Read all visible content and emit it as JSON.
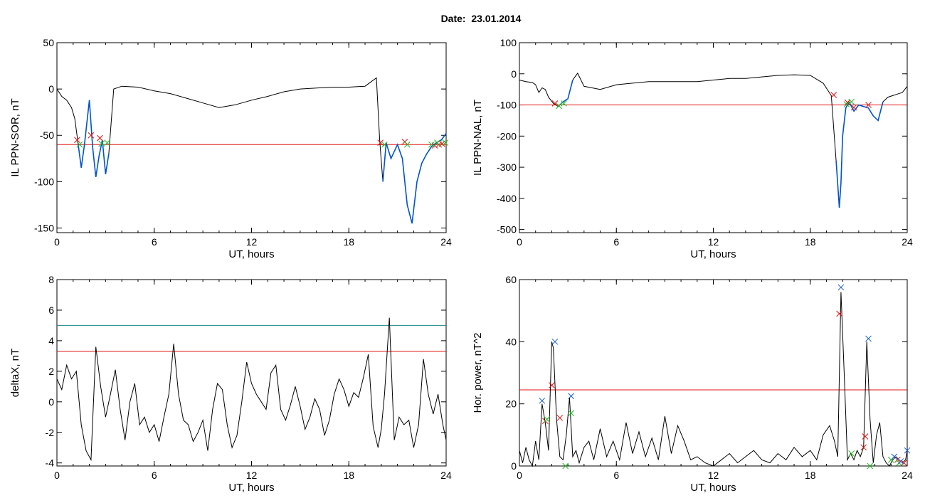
{
  "figure": {
    "title": "Date:  23.01.2014"
  },
  "colors": {
    "series": "#000000",
    "disturbed": "#0055cc",
    "threshold": "#e01010",
    "threshold2": "#14877f",
    "start_marker": "#e01010",
    "end_marker": "#22bb22",
    "peak_marker": "#1a5fd0"
  },
  "chart_data": [
    {
      "type": "line",
      "title": "",
      "xlabel": "UT, hours",
      "ylabel": "IL PPN-SOR, nT",
      "xlim": [
        0,
        24
      ],
      "ylim": [
        -155,
        50
      ],
      "x_ticks": [
        0,
        6,
        12,
        18,
        24
      ],
      "y_ticks": [
        -150,
        -100,
        -50,
        0,
        50
      ],
      "grid": false,
      "series": [
        {
          "role": "main",
          "x": [
            0,
            0.3,
            0.6,
            0.9,
            1.1,
            1.3,
            1.5,
            1.7,
            2.0,
            2.2,
            2.4,
            2.6,
            2.8,
            3.0,
            3.2,
            3.5,
            4,
            5,
            6,
            7,
            8,
            9,
            10,
            11,
            12,
            13,
            14,
            15,
            16,
            17,
            18,
            19,
            19.7,
            19.9,
            20.1,
            20.3,
            20.6,
            21,
            21.3,
            21.6,
            21.9,
            22.2,
            22.5,
            22.8,
            23.1,
            23.4,
            23.7,
            24
          ],
          "y": [
            0,
            -8,
            -12,
            -20,
            -32,
            -58,
            -85,
            -60,
            -12,
            -62,
            -95,
            -72,
            -55,
            -92,
            -70,
            0,
            3,
            2,
            -2,
            -5,
            -10,
            -15,
            -20,
            -17,
            -12,
            -8,
            -3,
            0,
            1,
            2,
            2,
            3,
            12,
            -55,
            -100,
            -58,
            -75,
            -60,
            -75,
            -125,
            -145,
            -100,
            -80,
            -70,
            -62,
            -58,
            -55,
            -48
          ]
        }
      ],
      "disturbed_intervals": [
        [
          1.3,
          3.3
        ],
        [
          20.0,
          24.0
        ]
      ],
      "threshold_lines": [
        {
          "role": "threshold",
          "y": -60
        }
      ],
      "start_markers": {
        "x": [
          1.25,
          2.1,
          2.65,
          19.95,
          21.45,
          23.3,
          23.55,
          23.75
        ],
        "y": [
          -55,
          -50,
          -53,
          -58,
          -57,
          -61,
          -60,
          -59
        ]
      },
      "end_markers": {
        "x": [
          1.4,
          2.75,
          3.1,
          20.2,
          21.6,
          23.1,
          23.45,
          23.95
        ],
        "y": [
          -60,
          -59,
          -58,
          -60,
          -60,
          -60,
          -58,
          -58
        ]
      }
    },
    {
      "type": "line",
      "title": "",
      "xlabel": "UT, hours",
      "ylabel": "IL PPN-NAL, nT",
      "xlim": [
        0,
        24
      ],
      "ylim": [
        -510,
        100
      ],
      "x_ticks": [
        0,
        6,
        12,
        18,
        24
      ],
      "y_ticks": [
        -500,
        -400,
        -300,
        -200,
        -100,
        0,
        100
      ],
      "grid": false,
      "series": [
        {
          "role": "main",
          "x": [
            0,
            0.4,
            0.8,
            1.0,
            1.2,
            1.4,
            1.6,
            1.8,
            2.1,
            2.4,
            2.7,
            3.0,
            3.3,
            3.6,
            4,
            5,
            6,
            7,
            8,
            9,
            10,
            11,
            12,
            13,
            14,
            15,
            16,
            17,
            18,
            18.8,
            19.3,
            19.6,
            19.8,
            19.9,
            20.0,
            20.2,
            20.4,
            20.7,
            21,
            21.3,
            21.6,
            21.9,
            22.2,
            22.5,
            22.8,
            23.1,
            23.4,
            23.7,
            24
          ],
          "y": [
            -20,
            -25,
            -28,
            -35,
            -60,
            -45,
            -50,
            -75,
            -95,
            -105,
            -90,
            -80,
            -20,
            2,
            -40,
            -50,
            -35,
            -30,
            -25,
            -25,
            -25,
            -25,
            -20,
            -15,
            -15,
            -10,
            -5,
            -3,
            -5,
            -30,
            -70,
            -280,
            -430,
            -350,
            -200,
            -110,
            -90,
            -120,
            -100,
            -105,
            -110,
            -135,
            -150,
            -90,
            -75,
            -70,
            -65,
            -60,
            -40
          ]
        }
      ],
      "disturbed_intervals": [
        [
          2.2,
          3.3
        ],
        [
          19.4,
          22.6
        ]
      ],
      "threshold_lines": [
        {
          "role": "threshold",
          "y": -100
        }
      ],
      "start_markers": {
        "x": [
          2.2,
          19.45,
          20.3,
          20.7,
          21.6
        ],
        "y": [
          -95,
          -68,
          -92,
          -108,
          -100
        ]
      },
      "end_markers": {
        "x": [
          2.45,
          2.75,
          20.25,
          20.55
        ],
        "y": [
          -103,
          -95,
          -98,
          -90
        ]
      }
    },
    {
      "type": "line",
      "title": "",
      "xlabel": "UT, hours",
      "ylabel": "deltaX, nT",
      "xlim": [
        0,
        24
      ],
      "ylim": [
        -4.2,
        8
      ],
      "x_ticks": [
        0,
        6,
        12,
        18,
        24
      ],
      "y_ticks": [
        -4,
        -2,
        0,
        2,
        4,
        6,
        8
      ],
      "grid": false,
      "series": [
        {
          "role": "main",
          "x": [
            0,
            0.3,
            0.6,
            0.9,
            1.2,
            1.5,
            1.8,
            2.1,
            2.4,
            2.7,
            3,
            3.3,
            3.6,
            3.9,
            4.2,
            4.5,
            4.8,
            5.1,
            5.4,
            5.7,
            6,
            6.3,
            6.6,
            6.9,
            7.2,
            7.5,
            7.8,
            8.1,
            8.4,
            8.7,
            9,
            9.3,
            9.6,
            9.9,
            10.2,
            10.5,
            10.8,
            11.1,
            11.4,
            11.7,
            12,
            12.3,
            12.6,
            12.9,
            13.2,
            13.5,
            13.8,
            14.1,
            14.4,
            14.7,
            15,
            15.3,
            15.6,
            15.9,
            16.2,
            16.5,
            16.8,
            17.1,
            17.4,
            17.7,
            18,
            18.3,
            18.6,
            18.9,
            19.2,
            19.5,
            19.8,
            20,
            20.2,
            20.5,
            20.8,
            21.1,
            21.4,
            21.7,
            22,
            22.3,
            22.6,
            22.9,
            23.2,
            23.5,
            23.8,
            24
          ],
          "y": [
            1.5,
            0.8,
            2.4,
            1.5,
            2,
            -1.5,
            -3.2,
            -3.8,
            3.6,
            1,
            -1,
            0.5,
            2.1,
            -0.5,
            -2.5,
            0,
            1.2,
            -1.5,
            -1,
            -2,
            -1.5,
            -2.6,
            -1,
            0.5,
            3.8,
            0.5,
            -1.2,
            -1.5,
            -2.6,
            -2,
            -1.2,
            -3.2,
            -0.5,
            1.2,
            0.8,
            -1.5,
            -3,
            -2.2,
            0,
            2.6,
            1.2,
            0.5,
            0,
            -0.5,
            1.9,
            2.4,
            -0.5,
            -1.2,
            -0.2,
            1,
            -0.3,
            -1.8,
            -1,
            0.2,
            -0.5,
            -2.2,
            -1.2,
            0.5,
            1.5,
            0.8,
            -0.3,
            0.6,
            0.3,
            1.6,
            3.1,
            -1.6,
            -3,
            -1.8,
            0.5,
            5.5,
            -2.5,
            -1,
            -1.5,
            -1.2,
            -3,
            -1.5,
            2.8,
            0.5,
            -0.8,
            0.5,
            -1.5,
            -2.5
          ]
        }
      ],
      "threshold_lines": [
        {
          "role": "threshold2",
          "y": 5.0
        },
        {
          "role": "threshold",
          "y": 3.3
        }
      ]
    },
    {
      "type": "line",
      "title": "",
      "xlabel": "UT, hours",
      "ylabel": "Hor. power, nT^2",
      "xlim": [
        0,
        24
      ],
      "ylim": [
        0,
        60
      ],
      "x_ticks": [
        0,
        6,
        12,
        18,
        24
      ],
      "y_ticks": [
        0,
        20,
        40,
        60
      ],
      "grid": false,
      "series": [
        {
          "role": "main",
          "x": [
            0,
            0.2,
            0.4,
            0.6,
            0.8,
            1.0,
            1.2,
            1.4,
            1.6,
            1.8,
            2.0,
            2.1,
            2.3,
            2.5,
            2.7,
            2.9,
            3.1,
            3.3,
            3.5,
            3.7,
            4,
            4.3,
            4.6,
            5,
            5.4,
            5.8,
            6.2,
            6.6,
            7,
            7.4,
            7.8,
            8.2,
            8.6,
            9,
            9.4,
            9.8,
            10.2,
            10.6,
            11,
            11.5,
            12,
            12.5,
            13,
            13.5,
            14,
            14.5,
            15,
            15.5,
            16,
            16.5,
            17,
            17.5,
            18,
            18.4,
            18.8,
            19.2,
            19.5,
            19.7,
            19.9,
            20.1,
            20.3,
            20.5,
            20.7,
            20.9,
            21.1,
            21.3,
            21.5,
            21.7,
            21.9,
            22.1,
            22.3,
            22.5,
            22.7,
            22.9,
            23.1,
            23.3,
            23.5,
            23.7,
            23.9,
            24
          ],
          "y": [
            5,
            1,
            6,
            2,
            0,
            8,
            2,
            20,
            14,
            5,
            40,
            38,
            15,
            3,
            2,
            10,
            22,
            3,
            5,
            1,
            6,
            8,
            2,
            12,
            3,
            8,
            2,
            14,
            4,
            11,
            3,
            9,
            2,
            16,
            4,
            13,
            8,
            2,
            3,
            1,
            0,
            2,
            4,
            1,
            3,
            5,
            2,
            1,
            4,
            2,
            6,
            3,
            5,
            2,
            10,
            13,
            8,
            3,
            56,
            30,
            2,
            4,
            2,
            5,
            3,
            6,
            40,
            15,
            1,
            10,
            14,
            3,
            1,
            0,
            2,
            3,
            2,
            1,
            2,
            5
          ]
        }
      ],
      "threshold_lines": [
        {
          "role": "threshold",
          "y": 24.5
        }
      ],
      "peak_markers": {
        "x": [
          1.4,
          2.2,
          3.2,
          19.9,
          21.6,
          23.2,
          23.6,
          24.0
        ],
        "y": [
          21,
          40,
          22.5,
          57.5,
          41,
          3,
          1.5,
          5
        ]
      },
      "start_markers": {
        "x": [
          1.6,
          2.0,
          2.5,
          19.8,
          21.4,
          21.3,
          23.4,
          23.8
        ],
        "y": [
          14.5,
          26,
          15.5,
          49,
          9.5,
          6,
          2,
          1
        ]
      },
      "end_markers": {
        "x": [
          1.7,
          2.85,
          3.2,
          20.55,
          21.7,
          23.0,
          23.5
        ],
        "y": [
          15,
          0,
          17,
          4,
          0,
          2,
          1
        ]
      }
    }
  ]
}
